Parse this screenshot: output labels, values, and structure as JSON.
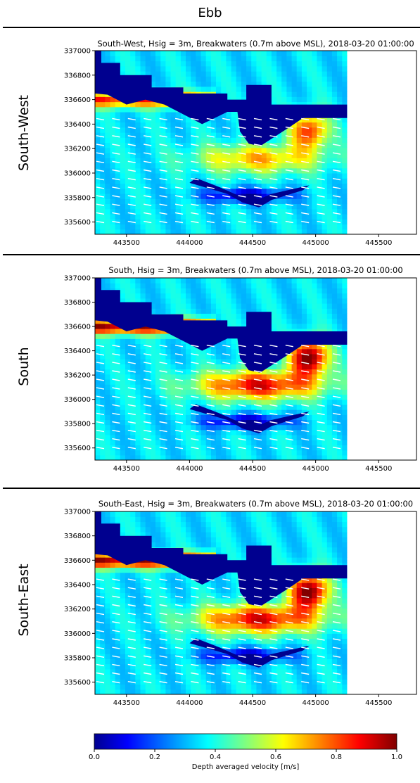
{
  "page_title": "Ebb",
  "chart_data": [
    {
      "type": "heatmap",
      "row_label": "South-West",
      "title": "South-West, Hsig = 3m, Breakwaters (0.7m above MSL), 2018-03-20 01:00:00",
      "xlim": [
        443250,
        445800
      ],
      "ylim": [
        335500,
        337000
      ],
      "x_ticks": [
        443500,
        444000,
        444500,
        445000,
        445500
      ],
      "y_ticks": [
        335600,
        335800,
        336000,
        336200,
        336400,
        336600,
        336800,
        337000
      ],
      "x_tick_labels": [
        "443500",
        "444000",
        "444500",
        "445000",
        "445500"
      ],
      "y_tick_labels": [
        "335600",
        "335800",
        "336000",
        "336200",
        "336400",
        "336600",
        "336800",
        "337000"
      ],
      "max_velocity_ms": 0.8
    },
    {
      "type": "heatmap",
      "row_label": "South",
      "title": "South, Hsig = 3m, Breakwaters (0.7m above MSL), 2018-03-20 01:00:00",
      "xlim": [
        443250,
        445800
      ],
      "ylim": [
        335500,
        337000
      ],
      "x_ticks": [
        443500,
        444000,
        444500,
        445000,
        445500
      ],
      "y_ticks": [
        335600,
        335800,
        336000,
        336200,
        336400,
        336600,
        336800,
        337000
      ],
      "x_tick_labels": [
        "443500",
        "444000",
        "444500",
        "445000",
        "445500"
      ],
      "y_tick_labels": [
        "335600",
        "335800",
        "336000",
        "336200",
        "336400",
        "336600",
        "336800",
        "337000"
      ],
      "max_velocity_ms": 1.0
    },
    {
      "type": "heatmap",
      "row_label": "South-East",
      "title": "South-East, Hsig = 3m, Breakwaters (0.7m above MSL), 2018-03-20 01:00:00",
      "xlim": [
        443250,
        445800
      ],
      "ylim": [
        335500,
        337000
      ],
      "x_ticks": [
        443500,
        444000,
        444500,
        445000,
        445500
      ],
      "y_ticks": [
        335600,
        335800,
        336000,
        336200,
        336400,
        336600,
        336800,
        337000
      ],
      "x_tick_labels": [
        "443500",
        "444000",
        "444500",
        "445000",
        "445500"
      ],
      "y_tick_labels": [
        "335600",
        "335800",
        "336000",
        "336200",
        "336400",
        "336600",
        "336800",
        "337000"
      ],
      "max_velocity_ms": 1.0
    }
  ],
  "colorbar": {
    "label": "Depth averaged velocity [m/s]",
    "range": [
      0.0,
      1.0
    ],
    "ticks": [
      0.0,
      0.2,
      0.4,
      0.6,
      0.8,
      1.0
    ],
    "tick_labels": [
      "0.0",
      "0.2",
      "0.4",
      "0.6",
      "0.8",
      "1.0"
    ],
    "colormap": "jet"
  }
}
